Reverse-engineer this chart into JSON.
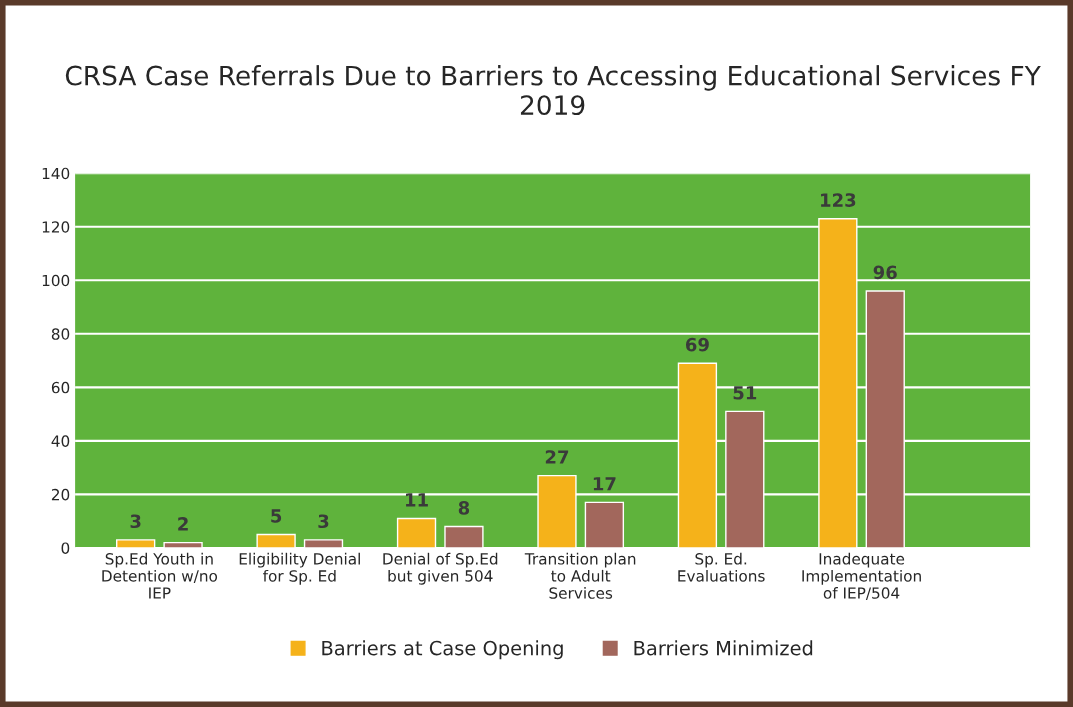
{
  "chart_data": {
    "type": "bar",
    "title": "CRSA Case Referrals Due to Barriers to Accessing Educational Services FY 2019",
    "categories": [
      "Sp.Ed Youth in\nDetention w/no\nIEP",
      "Eligibility Denial\nfor Sp. Ed",
      "Denial of Sp.Ed\nbut given 504",
      "Transition plan\nto Adult\nServices",
      "Sp. Ed.\nEvaluations",
      "Inadequate\nImplementation\nof IEP/504"
    ],
    "series": [
      {
        "name": "Barriers at Case Opening",
        "color": "#f5b21a",
        "values": [
          3,
          5,
          11,
          27,
          69,
          123
        ]
      },
      {
        "name": "Barriers Minimized",
        "color": "#a2675c",
        "values": [
          2,
          3,
          8,
          17,
          51,
          96
        ]
      }
    ],
    "ylim": [
      0,
      140
    ],
    "yticks": [
      0,
      20,
      40,
      60,
      80,
      100,
      120,
      140
    ],
    "grid": "y",
    "legend": "bottom",
    "data_labels": true
  }
}
